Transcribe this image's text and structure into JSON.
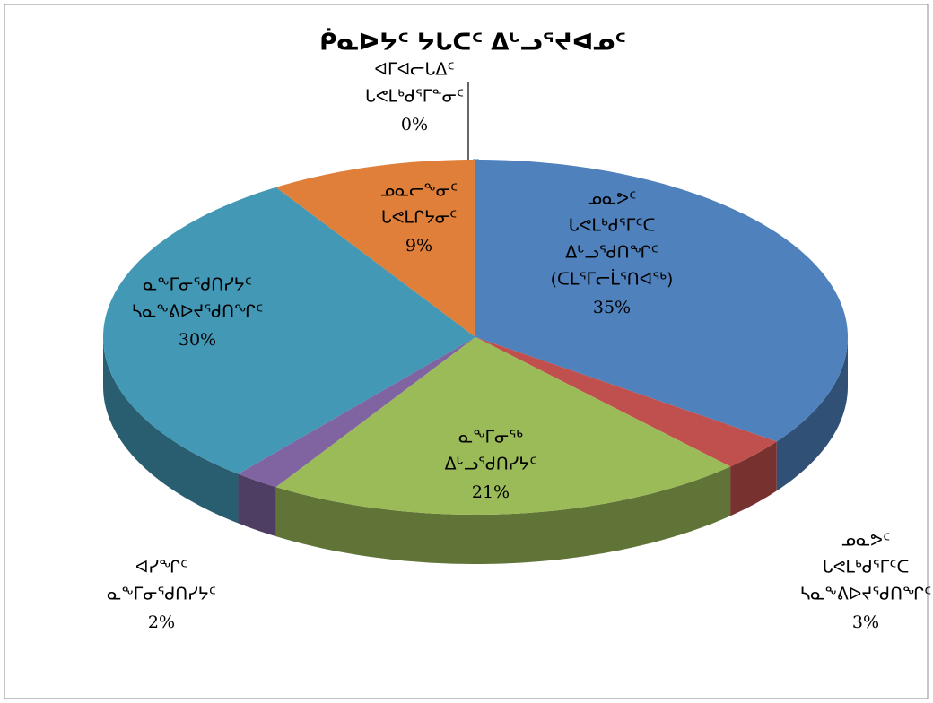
{
  "chart_data": {
    "type": "pie",
    "title": "ᑮᓇᐅᔭᑦ ᔭᒐᑕᑦ ᐃᒡᓗᕐᔪᐊᓄᑦ",
    "categories": [
      [
        "ᐊᒥᐊᓕᒐᐃᑦ",
        "ᒐᕙᒪᒃᑯᕐᒥᓐᓂᑦ"
      ],
      [
        "ᓄᓇᕗᑦ",
        "ᒐᕙᒪᒃᑯᕐᒥᑦᑕ",
        "ᐃᒡᓗᕐᑯᑎᖏᑦ",
        "(ᑕᒪᕐᒥᓕᒫᕐᑎᐊᖅ)"
      ],
      [
        "ᓄᓇᕗᑦ",
        "ᒐᕙᒪᒃᑯᕐᒥᑦᑕ",
        "ᓴᓇᖕᕕᐅᔪᕐᑯᑎᖏᑦ"
      ],
      [
        "ᓇᖕᒥᓂᖅ",
        "ᐃᒡᓗᕐᑯᑎᓯᔭᑦ"
      ],
      [
        "ᐊᓯᖏᑦ",
        "ᓇᖕᒥᓂᕐᑯᑎᓯᔭᑦ"
      ],
      [
        "ᓇᖕᒥᓂᕐᑯᑎᓯᔭᑦ",
        "ᓴᓇᖕᕕᐅᔪᕐᑯᑎᖏᑦ"
      ],
      [
        "ᓄᓇᓕᖕᓂᑦ",
        "ᒐᕙᒪᒋᔭᓂᑦ"
      ]
    ],
    "values": [
      0,
      35,
      3,
      21,
      2,
      30,
      9
    ],
    "value_labels": [
      "0%",
      "35%",
      "3%",
      "21%",
      "2%",
      "30%",
      "9%"
    ],
    "colors": [
      "#a5b8e0",
      "#4f81bd",
      "#c0504d",
      "#9bbb59",
      "#8064a2",
      "#4298b5",
      "#e07f3a"
    ]
  }
}
